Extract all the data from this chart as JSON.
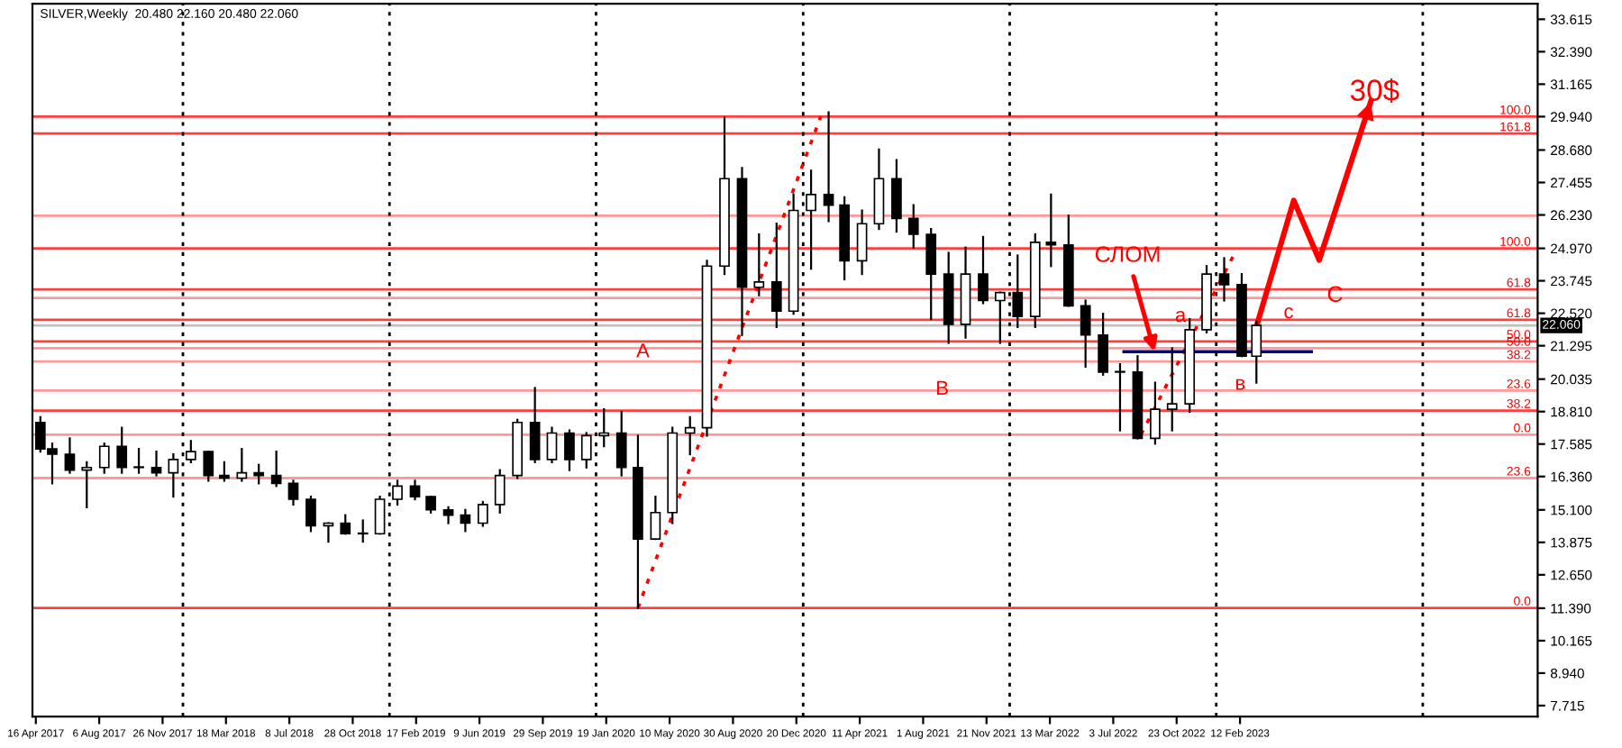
{
  "chart_data": {
    "type": "candlestick",
    "title": "SILVER,Weekly  20.480 22.160 20.480 22.060",
    "x": [
      "2017-04-24",
      "2017-05-15",
      "2017-06-15",
      "2017-07-15",
      "2017-08-15",
      "2017-09-15",
      "2017-10-15",
      "2017-11-15",
      "2017-12-15",
      "2018-01-15",
      "2018-02-15",
      "2018-03-15",
      "2018-04-15",
      "2018-05-15",
      "2018-06-15",
      "2018-07-15",
      "2018-08-15",
      "2018-09-15",
      "2018-10-15",
      "2018-11-15",
      "2018-12-15",
      "2019-01-15",
      "2019-02-15",
      "2019-03-15",
      "2019-04-15",
      "2019-05-15",
      "2019-06-15",
      "2019-07-15",
      "2019-08-15",
      "2019-09-15",
      "2019-10-15",
      "2019-11-15",
      "2019-12-15",
      "2020-01-15",
      "2020-02-15",
      "2020-03-15",
      "2020-04-15",
      "2020-05-15",
      "2020-06-15",
      "2020-07-15",
      "2020-08-15",
      "2020-09-15",
      "2020-10-15",
      "2020-11-15",
      "2020-12-15",
      "2021-01-15",
      "2021-02-15",
      "2021-03-15",
      "2021-04-15",
      "2021-05-15",
      "2021-06-15",
      "2021-07-15",
      "2021-08-15",
      "2021-09-15",
      "2021-10-15",
      "2021-11-15",
      "2021-12-15",
      "2022-01-15",
      "2022-02-15",
      "2022-03-15",
      "2022-04-15",
      "2022-05-15",
      "2022-06-15",
      "2022-07-15",
      "2022-08-15",
      "2022-09-15",
      "2022-10-15",
      "2022-11-15",
      "2022-12-15",
      "2023-01-15",
      "2023-02-15",
      "2023-03-13"
    ],
    "ohlc": [
      [
        18.4,
        18.6,
        17.3,
        17.4
      ],
      [
        17.4,
        17.6,
        16.1,
        17.2
      ],
      [
        17.2,
        17.8,
        16.5,
        16.6
      ],
      [
        16.6,
        16.9,
        15.2,
        16.7
      ],
      [
        16.7,
        17.6,
        16.5,
        17.5
      ],
      [
        17.5,
        18.2,
        16.5,
        16.7
      ],
      [
        16.7,
        17.4,
        16.5,
        16.7
      ],
      [
        16.7,
        17.3,
        16.4,
        16.5
      ],
      [
        16.5,
        17.2,
        15.6,
        17.0
      ],
      [
        17.0,
        17.7,
        16.9,
        17.3
      ],
      [
        17.3,
        17.3,
        16.2,
        16.4
      ],
      [
        16.4,
        16.9,
        16.2,
        16.3
      ],
      [
        16.3,
        17.4,
        16.2,
        16.5
      ],
      [
        16.5,
        16.8,
        16.1,
        16.4
      ],
      [
        16.4,
        17.3,
        16.0,
        16.1
      ],
      [
        16.1,
        16.2,
        15.3,
        15.5
      ],
      [
        15.5,
        15.6,
        14.3,
        14.5
      ],
      [
        14.5,
        14.6,
        13.9,
        14.6
      ],
      [
        14.6,
        14.9,
        14.2,
        14.2
      ],
      [
        14.2,
        14.7,
        13.9,
        14.2
      ],
      [
        14.2,
        15.6,
        14.2,
        15.5
      ],
      [
        15.5,
        16.2,
        15.3,
        16.0
      ],
      [
        16.0,
        16.2,
        15.5,
        15.6
      ],
      [
        15.6,
        15.6,
        15.0,
        15.1
      ],
      [
        15.1,
        15.2,
        14.6,
        14.9
      ],
      [
        14.9,
        15.1,
        14.3,
        14.6
      ],
      [
        14.6,
        15.4,
        14.5,
        15.3
      ],
      [
        15.3,
        16.6,
        15.0,
        16.4
      ],
      [
        16.4,
        18.5,
        16.3,
        18.4
      ],
      [
        18.4,
        19.7,
        16.9,
        17.0
      ],
      [
        17.0,
        18.2,
        16.9,
        18.0
      ],
      [
        18.0,
        18.1,
        16.6,
        17.0
      ],
      [
        17.0,
        18.0,
        16.7,
        17.9
      ],
      [
        17.9,
        18.9,
        17.5,
        18.0
      ],
      [
        18.0,
        18.8,
        16.4,
        16.7
      ],
      [
        16.7,
        17.9,
        11.4,
        14.0
      ],
      [
        14.0,
        15.6,
        14.0,
        15.0
      ],
      [
        15.0,
        18.2,
        14.6,
        18.0
      ],
      [
        18.0,
        18.6,
        17.2,
        18.2
      ],
      [
        18.2,
        24.5,
        17.9,
        24.3
      ],
      [
        24.3,
        29.9,
        24.0,
        27.6
      ],
      [
        27.6,
        28.0,
        21.7,
        23.5
      ],
      [
        23.5,
        25.5,
        23.2,
        23.7
      ],
      [
        23.7,
        25.9,
        22.0,
        22.6
      ],
      [
        22.6,
        27.0,
        22.5,
        26.4
      ],
      [
        26.4,
        27.9,
        24.2,
        27.0
      ],
      [
        27.0,
        30.1,
        26.0,
        26.6
      ],
      [
        26.6,
        26.9,
        23.8,
        24.5
      ],
      [
        24.5,
        26.4,
        24.0,
        25.9
      ],
      [
        25.9,
        28.7,
        25.7,
        27.6
      ],
      [
        27.6,
        28.3,
        25.6,
        26.1
      ],
      [
        26.1,
        26.6,
        25.0,
        25.5
      ],
      [
        25.5,
        25.7,
        22.3,
        24.0
      ],
      [
        24.0,
        24.8,
        21.4,
        22.1
      ],
      [
        22.1,
        25.0,
        21.6,
        24.0
      ],
      [
        24.0,
        25.4,
        22.9,
        23.0
      ],
      [
        23.0,
        23.3,
        21.4,
        23.3
      ],
      [
        23.3,
        24.7,
        22.0,
        22.4
      ],
      [
        22.4,
        25.5,
        22.0,
        25.2
      ],
      [
        25.2,
        27.0,
        24.3,
        25.1
      ],
      [
        25.1,
        26.2,
        22.8,
        22.8
      ],
      [
        22.8,
        23.0,
        20.5,
        21.7
      ],
      [
        21.7,
        22.5,
        20.2,
        20.3
      ],
      [
        20.3,
        20.6,
        18.1,
        20.3
      ],
      [
        20.3,
        20.9,
        17.8,
        17.8
      ],
      [
        17.8,
        19.9,
        17.6,
        18.9
      ],
      [
        18.9,
        21.2,
        18.1,
        19.1
      ],
      [
        19.1,
        22.3,
        18.8,
        21.9
      ],
      [
        21.9,
        24.3,
        21.8,
        24.0
      ],
      [
        24.0,
        24.6,
        23.0,
        23.6
      ],
      [
        23.6,
        24.0,
        20.9,
        20.9
      ],
      [
        20.9,
        22.2,
        19.9,
        22.06
      ]
    ],
    "color": "#000000",
    "series": [
      {
        "type": "line",
        "color": "#ff0000",
        "line_style": "dotted",
        "x": [
          "2020-03-15",
          "2021-02-01"
        ],
        "values": [
          11.4,
          29.94
        ]
      },
      {
        "type": "line",
        "color": "#ff0000",
        "line_style": "dotted",
        "x": [
          "2022-08-21",
          "2023-02-01"
        ],
        "values": [
          17.94,
          24.72
        ]
      },
      {
        "type": "line",
        "color": "#000080",
        "line_style": "solid",
        "x": [
          "2022-07-22",
          "2023-06-18"
        ],
        "values": [
          21.07,
          21.07
        ]
      },
      {
        "type": "line",
        "color": "#ff0000",
        "line_style": "solid",
        "x": [
          "2023-03-13",
          "2023-05-18",
          "2023-07-02",
          "2023-10-01"
        ],
        "values": [
          22.02,
          26.78,
          24.53,
          30.5
        ]
      }
    ],
    "xlim": [
      "2017-04-10",
      "2024-07-22"
    ],
    "xticks": [
      {
        "value": "2017-04-16",
        "label": "16 Apr 2017"
      },
      {
        "value": "2017-08-06",
        "label": "6 Aug 2017"
      },
      {
        "value": "2017-11-26",
        "label": "26 Nov 2017"
      },
      {
        "value": "2018-03-18",
        "label": "18 Mar 2018"
      },
      {
        "value": "2018-07-08",
        "label": "8 Jul 2018"
      },
      {
        "value": "2018-10-28",
        "label": "28 Oct 2018"
      },
      {
        "value": "2019-02-17",
        "label": "17 Feb 2019"
      },
      {
        "value": "2019-06-09",
        "label": "9 Jun 2019"
      },
      {
        "value": "2019-09-29",
        "label": "29 Sep 2019"
      },
      {
        "value": "2020-01-19",
        "label": "19 Jan 2020"
      },
      {
        "value": "2020-05-10",
        "label": "10 May 2020"
      },
      {
        "value": "2020-08-30",
        "label": "30 Aug 2020"
      },
      {
        "value": "2020-12-20",
        "label": "20 Dec 2020"
      },
      {
        "value": "2021-04-11",
        "label": "11 Apr 2021"
      },
      {
        "value": "2021-08-01",
        "label": "1 Aug 2021"
      },
      {
        "value": "2021-11-21",
        "label": "21 Nov 2021"
      },
      {
        "value": "2022-03-13",
        "label": "13 Mar 2022"
      },
      {
        "value": "2022-07-03",
        "label": "3 Jul 2022"
      },
      {
        "value": "2022-10-23",
        "label": "23 Oct 2022"
      },
      {
        "value": "2023-02-12",
        "label": "12 Feb 2023"
      }
    ],
    "ylim": [
      7.3,
      34.2
    ],
    "yticks": [
      {
        "value": 33.615,
        "label": "33.615"
      },
      {
        "value": 32.39,
        "label": "32.390"
      },
      {
        "value": 31.165,
        "label": "31.165"
      },
      {
        "value": 29.94,
        "label": "29.940"
      },
      {
        "value": 28.68,
        "label": "28.680"
      },
      {
        "value": 27.455,
        "label": "27.455"
      },
      {
        "value": 26.23,
        "label": "26.230"
      },
      {
        "value": 24.97,
        "label": "24.970"
      },
      {
        "value": 23.745,
        "label": "23.745"
      },
      {
        "value": 22.52,
        "label": "22.520"
      },
      {
        "value": 21.295,
        "label": "21.295"
      },
      {
        "value": 20.035,
        "label": "20.035"
      },
      {
        "value": 18.81,
        "label": "18.810"
      },
      {
        "value": 17.585,
        "label": "17.585"
      },
      {
        "value": 16.36,
        "label": "16.360"
      },
      {
        "value": 15.1,
        "label": "15.100"
      },
      {
        "value": 13.875,
        "label": "13.875"
      },
      {
        "value": 12.65,
        "label": "12.650"
      },
      {
        "value": 11.39,
        "label": "11.390"
      },
      {
        "value": 10.165,
        "label": "10.165"
      },
      {
        "value": 8.94,
        "label": "8.940"
      },
      {
        "value": 7.715,
        "label": "7.715"
      }
    ],
    "ref_lines": [
      {
        "axis": "y",
        "value": 29.94,
        "label": null,
        "color": "#ff4040"
      },
      {
        "axis": "y",
        "value": 29.3,
        "label": null,
        "color": "#ff4040"
      },
      {
        "axis": "y",
        "value": 26.2,
        "label": null,
        "color": "#ff9999"
      },
      {
        "axis": "y",
        "value": 24.97,
        "label": null,
        "color": "#ff4040"
      },
      {
        "axis": "y",
        "value": 23.42,
        "label": null,
        "color": "#ff4040"
      },
      {
        "axis": "y",
        "value": 23.1,
        "label": null,
        "color": "#ff9999"
      },
      {
        "axis": "y",
        "value": 22.27,
        "label": null,
        "color": "#ff4040"
      },
      {
        "axis": "y",
        "value": 21.46,
        "label": null,
        "color": "#ff4040"
      },
      {
        "axis": "y",
        "value": 21.2,
        "label": null,
        "color": "#ff9999"
      },
      {
        "axis": "y",
        "value": 20.7,
        "label": null,
        "color": "#ff9999"
      },
      {
        "axis": "y",
        "value": 19.6,
        "label": null,
        "color": "#ff9999"
      },
      {
        "axis": "y",
        "value": 18.85,
        "label": null,
        "color": "#ff4040"
      },
      {
        "axis": "y",
        "value": 17.94,
        "label": null,
        "color": "#ff9999"
      },
      {
        "axis": "y",
        "value": 16.3,
        "label": null,
        "color": "#ff9999"
      },
      {
        "axis": "y",
        "value": 11.4,
        "label": null,
        "color": "#ff4040"
      },
      {
        "axis": "y",
        "value": 22.06,
        "label": "22.060",
        "color": "#c0c0c0",
        "line_style": "solid"
      },
      {
        "axis": "x",
        "value": "2018-01-01",
        "label": null,
        "color": "#000000",
        "line_style": "dotted"
      },
      {
        "axis": "x",
        "value": "2019-01-01",
        "label": null,
        "color": "#000000",
        "line_style": "dotted"
      },
      {
        "axis": "x",
        "value": "2020-01-01",
        "label": null,
        "color": "#000000",
        "line_style": "dotted"
      },
      {
        "axis": "x",
        "value": "2021-01-01",
        "label": null,
        "color": "#000000",
        "line_style": "dotted"
      },
      {
        "axis": "x",
        "value": "2022-01-01",
        "label": null,
        "color": "#000000",
        "line_style": "dotted"
      },
      {
        "axis": "x",
        "value": "2023-01-01",
        "label": null,
        "color": "#000000",
        "line_style": "dotted"
      },
      {
        "axis": "x",
        "value": "2024-01-01",
        "label": null,
        "color": "#000000",
        "line_style": "dotted"
      }
    ],
    "annotations": [
      {
        "text": "A",
        "x": "2020-03-12",
        "y": 21.05
      },
      {
        "text": "B",
        "x": "2021-08-23",
        "y": 19.64
      },
      "C",
      {
        "text": "a",
        "x": "2022-10-20",
        "y": 22.4
      },
      {
        "text": "в",
        "x": "2023-02-03",
        "y": 19.83
      },
      {
        "text": "c",
        "x": "2023-04-30",
        "y": 22.53
      },
      {
        "text": "СЛОМ",
        "x": "2022-09-14",
        "y": 21.07
      },
      "30$",
      {
        "text": "100.0",
        "x": "2024-07-10",
        "y": 29.94
      },
      {
        "text": "161.8",
        "x": "2024-07-10",
        "y": 29.3
      },
      {
        "text": "100.0",
        "x": "2024-07-10",
        "y": 24.97
      },
      {
        "text": "61.8",
        "x": "2024-07-10",
        "y": 23.42
      },
      {
        "text": "61.8",
        "x": "2024-07-10",
        "y": 22.27
      },
      {
        "text": "50.0",
        "x": "2024-07-10",
        "y": 21.46
      },
      {
        "text": "50.0",
        "x": "2024-07-10",
        "y": 21.2
      },
      {
        "text": "38.2",
        "x": "2024-07-10",
        "y": 20.7
      },
      {
        "text": "23.6",
        "x": "2024-07-10",
        "y": 19.6
      },
      {
        "text": "38.2",
        "x": "2024-07-10",
        "y": 18.85
      },
      {
        "text": "0.0",
        "x": "2024-07-10",
        "y": 17.94
      },
      {
        "text": "23.6",
        "x": "2024-07-10",
        "y": 16.3
      },
      {
        "text": "0.0",
        "x": "2024-07-10",
        "y": 11.4
      }
    ],
    "grid": false,
    "legend": false
  }
}
